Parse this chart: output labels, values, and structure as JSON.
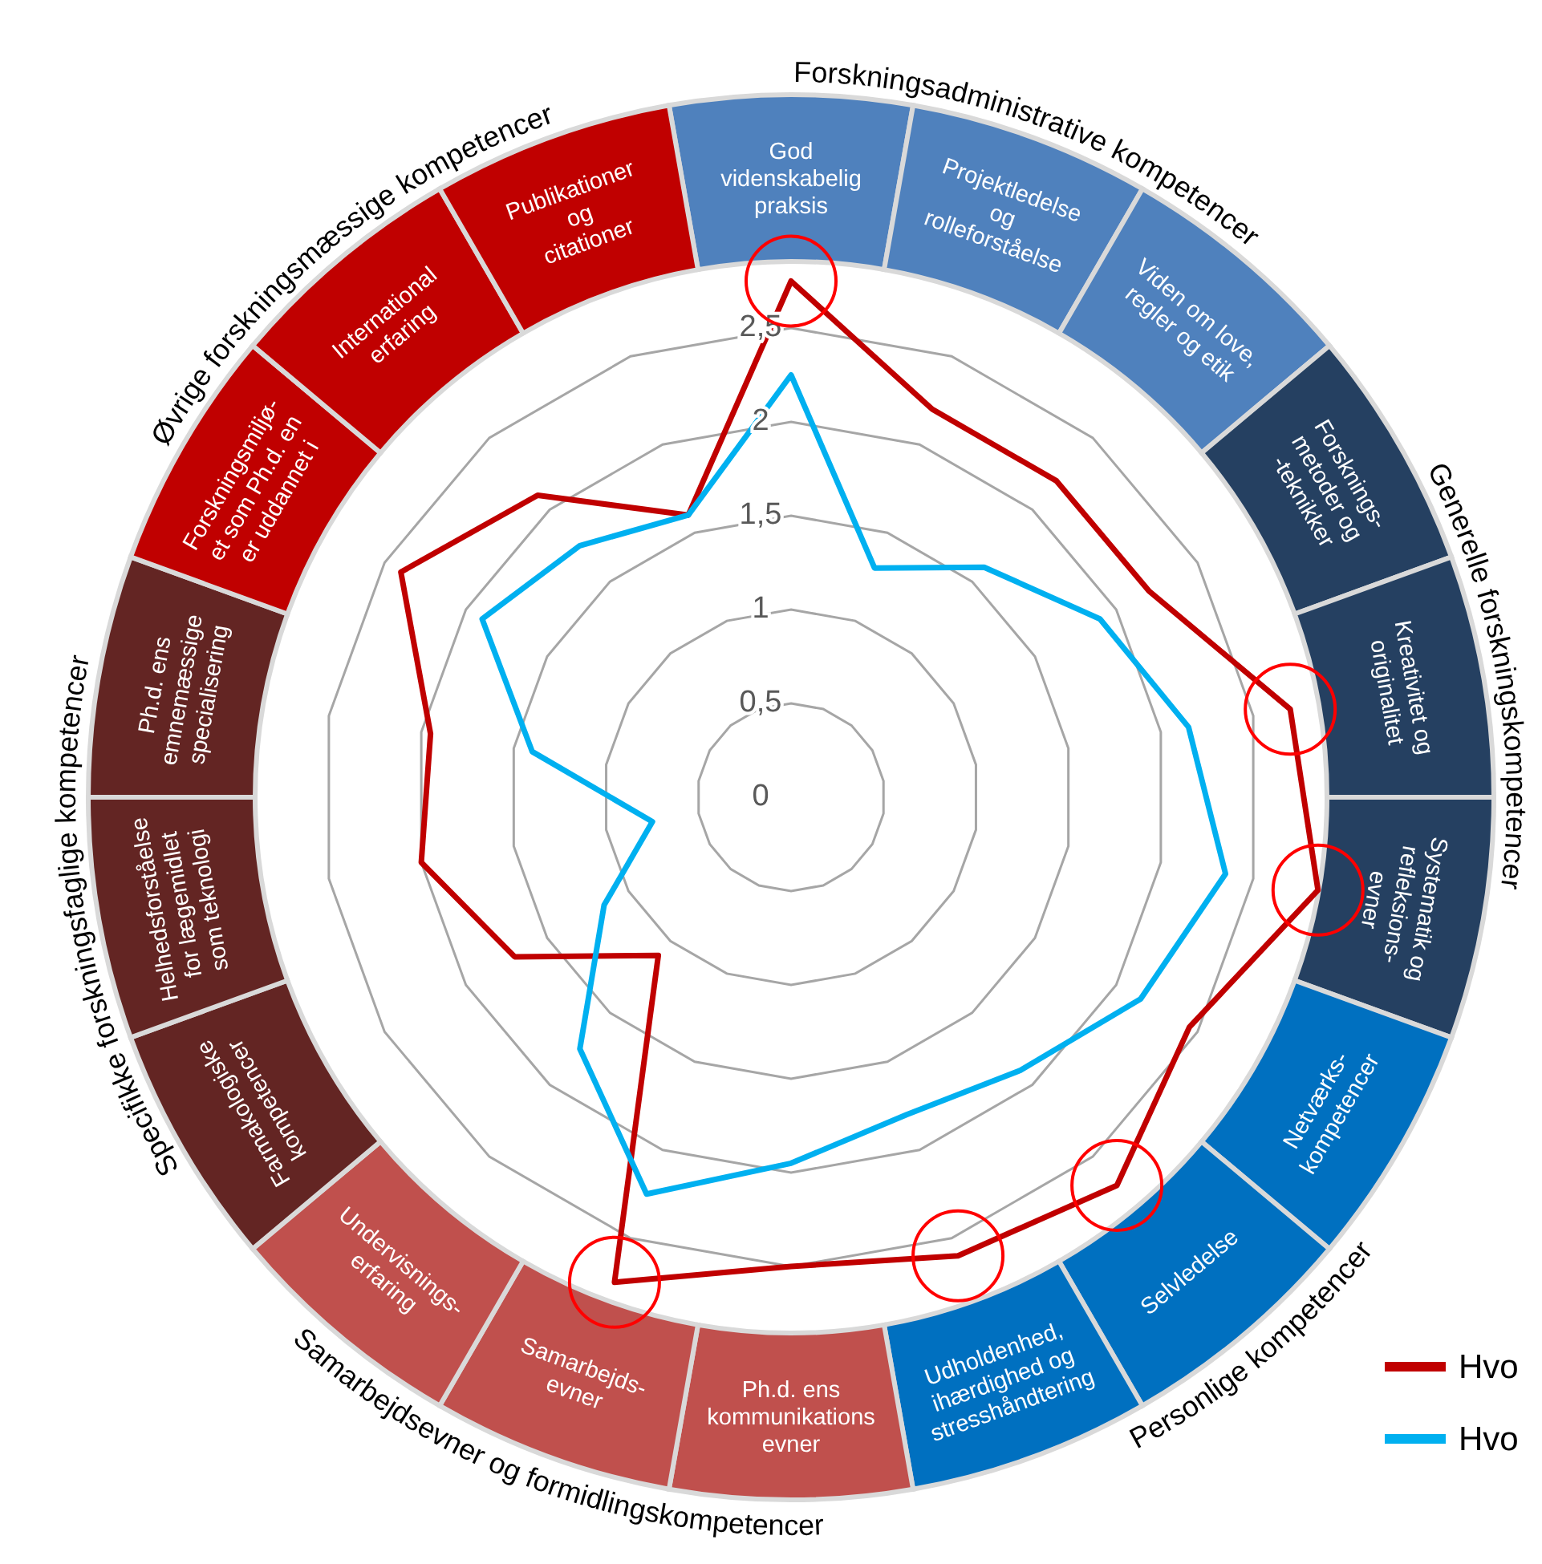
{
  "chart_data": {
    "type": "radar",
    "categories": [
      "God\nvidenskabelig\npraksis",
      "Projektledelse\nog\nrolleforståelse",
      "Viden om love,\nregler og etik",
      "Forsknings-\nmetoder og\n-teknikker",
      "Kreativitet og\noriginalitet",
      "Systematik og\nrefleksions-\nevner",
      "Netværks-\nkompetencer",
      "Selvledelse",
      "Udholdenhed,\nihærdighed og\nstresshåndtering",
      "Ph.d. ens\nkommunikations\nevner",
      "Samarbejds-\nevner",
      "Undervisnings-\nerfaring",
      "Farmakologiske\nkompetencer",
      "Helhedsforståelse\nfor lægemidlet\nsom teknologi",
      "Ph.d. ens\nemnemæssige\nspecialisering",
      "Forskningsmiljø-\net som Ph.d. en\ner uddannet i",
      "International\nerfaring",
      "Publikationer\nog\ncitationer"
    ],
    "series": [
      {
        "name": "Hvo",
        "color": "#c00000",
        "values": [
          2.75,
          2.2,
          2.2,
          2.2,
          2.7,
          2.85,
          2.45,
          2.7,
          2.6,
          2.5,
          2.75,
          1.1,
          1.7,
          2.0,
          1.95,
          2.4,
          2.1,
          1.6
        ]
      },
      {
        "name": "Hvo",
        "color": "#00b0f0",
        "values": [
          2.25,
          1.3,
          1.6,
          1.9,
          2.15,
          2.35,
          2.15,
          1.9,
          1.8,
          1.95,
          2.25,
          1.75,
          1.15,
          0.75,
          1.4,
          1.9,
          1.75,
          1.6
        ]
      }
    ],
    "ylim": [
      0,
      3
    ],
    "yticks": [
      0,
      {
        "value": 0.5,
        "label": "0,5"
      },
      1,
      {
        "value": 1.5,
        "label": "1,5"
      },
      2,
      {
        "value": 2.5,
        "label": "2,5"
      }
    ],
    "grid": true,
    "legend": "bottom right",
    "annotations": [
      "Forskningsadministrative kompetencer",
      "Generelle forskningskompetencer",
      "Personlige kompetencer",
      "Samarbejdsevner og formidlingskompetencer",
      "Specifikke forskningsfaglige kompetencer",
      "Øvrige forskningsmæssige kompetencer"
    ]
  }
}
